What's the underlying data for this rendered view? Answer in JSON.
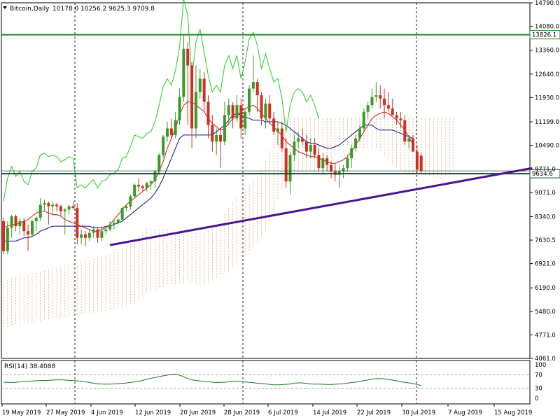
{
  "header": {
    "symbol": "Bitcoin,Daily",
    "ohlc": "10178.0 10256.2 9625.3 9709.8"
  },
  "rsi_header": "RSI(14) 38.4088",
  "colors": {
    "bull": "#3a9a28",
    "bear": "#d03020",
    "tenkan": "#d01515",
    "kijun": "#0a0a9a",
    "chikou": "#22cc22",
    "cloud": "#d8a070",
    "resistance": "#1a8a1a",
    "support": "#1a4a3a",
    "trendline": "#4a1490",
    "rsi": "#1a7a1a",
    "grid": "#222222"
  },
  "chart_data": [
    {
      "type": "candlestick",
      "title": "Bitcoin,Daily",
      "x_labels": [
        "19 May 2019",
        "27 May 2019",
        "4 Jun 2019",
        "12 Jun 2019",
        "20 Jun 2019",
        "28 Jun 2019",
        "6 Jul 2019",
        "14 Jul 2019",
        "22 Jul 2019",
        "30 Jul 2019",
        "7 Aug 2019",
        "15 Aug 2019"
      ],
      "y_ticks": [
        "14790.0",
        "14080.0",
        "13360.0",
        "12640.0",
        "11930.0",
        "11199.0",
        "10490.0",
        "9771.0",
        "9071.0",
        "8340.0",
        "7630.5",
        "6921.0",
        "6190.0",
        "5480.0",
        "4771.0",
        "4061.0"
      ],
      "ylim": [
        4061,
        14790
      ],
      "horizontal_lines": [
        {
          "label": "13826.1",
          "value": 13826.1
        },
        {
          "label": "9634.6",
          "value": 9634.6
        }
      ],
      "trendline": {
        "start": {
          "x": 26,
          "y": 7480
        },
        "end": {
          "x": 116,
          "y": 9800
        }
      },
      "candles": [
        [
          8200,
          8300,
          7200,
          7300
        ],
        [
          7300,
          8200,
          7200,
          8000
        ],
        [
          8000,
          8400,
          7700,
          8350
        ],
        [
          8350,
          8400,
          7900,
          8050
        ],
        [
          8050,
          8300,
          7800,
          8200
        ],
        [
          8200,
          8300,
          7750,
          7900
        ],
        [
          7900,
          8100,
          7300,
          7800
        ],
        [
          7800,
          8250,
          7700,
          8200
        ],
        [
          8200,
          8350,
          7900,
          8300
        ],
        [
          8300,
          8900,
          8200,
          8700
        ],
        [
          8700,
          8850,
          8500,
          8750
        ],
        [
          8750,
          8800,
          8100,
          8650
        ],
        [
          8650,
          8800,
          8400,
          8700
        ],
        [
          8700,
          8750,
          8500,
          8650
        ],
        [
          8650,
          8700,
          8350,
          8500
        ],
        [
          8500,
          8600,
          7800,
          8550
        ],
        [
          8550,
          8700,
          8400,
          8650
        ],
        [
          8650,
          8800,
          8550,
          8600
        ],
        [
          8600,
          8750,
          7500,
          7700
        ],
        [
          7700,
          7950,
          7500,
          7800
        ],
        [
          7800,
          7900,
          7450,
          7700
        ],
        [
          7700,
          7950,
          7600,
          7850
        ],
        [
          7850,
          8050,
          7700,
          7950
        ],
        [
          7950,
          8000,
          7550,
          7700
        ],
        [
          7700,
          8050,
          7600,
          7900
        ],
        [
          7900,
          8050,
          7800,
          7950
        ],
        [
          7950,
          8200,
          7900,
          8100
        ],
        [
          8100,
          8250,
          7950,
          8150
        ],
        [
          8150,
          8300,
          8100,
          8250
        ],
        [
          8250,
          8650,
          8200,
          8600
        ],
        [
          8600,
          8700,
          8500,
          8650
        ],
        [
          8650,
          9000,
          8550,
          8950
        ],
        [
          8950,
          9350,
          8900,
          9300
        ],
        [
          9300,
          9500,
          9100,
          9250
        ],
        [
          9250,
          9300,
          9100,
          9200
        ],
        [
          9200,
          9400,
          9100,
          9350
        ],
        [
          9350,
          9450,
          9150,
          9400
        ],
        [
          9400,
          9750,
          9200,
          9700
        ],
        [
          9700,
          10250,
          9600,
          10200
        ],
        [
          10200,
          10800,
          10100,
          10750
        ],
        [
          10750,
          11200,
          10600,
          11000
        ],
        [
          11000,
          11300,
          10700,
          10800
        ],
        [
          10800,
          11500,
          10700,
          11250
        ],
        [
          11250,
          12200,
          11100,
          11950
        ],
        [
          11950,
          13800,
          11800,
          13400
        ],
        [
          13400,
          13600,
          11100,
          12900
        ],
        [
          12900,
          13000,
          10400,
          11000
        ],
        [
          11000,
          12900,
          10700,
          12100
        ],
        [
          12100,
          12800,
          11900,
          12500
        ],
        [
          12500,
          12700,
          11500,
          11800
        ],
        [
          11800,
          12000,
          10700,
          11100
        ],
        [
          11100,
          11400,
          10300,
          10600
        ],
        [
          10600,
          11000,
          10200,
          10800
        ],
        [
          10800,
          11000,
          9800,
          10600
        ],
        [
          10600,
          11800,
          10500,
          11400
        ],
        [
          11400,
          11900,
          11100,
          11700
        ],
        [
          11700,
          11800,
          11000,
          11300
        ],
        [
          11300,
          12000,
          11200,
          11700
        ],
        [
          11700,
          11900,
          10700,
          11000
        ],
        [
          11000,
          11600,
          10800,
          11500
        ],
        [
          11500,
          12300,
          11400,
          12200
        ],
        [
          12200,
          13200,
          12100,
          12400
        ],
        [
          12400,
          12500,
          11500,
          12000
        ],
        [
          12000,
          12100,
          11100,
          11300
        ],
        [
          11300,
          11900,
          11000,
          11750
        ],
        [
          11750,
          12000,
          11200,
          11300
        ],
        [
          11300,
          11500,
          10800,
          10900
        ],
        [
          10900,
          11200,
          10500,
          11000
        ],
        [
          11000,
          11200,
          10300,
          10400
        ],
        [
          10400,
          10700,
          9200,
          9400
        ],
        [
          9400,
          10300,
          9000,
          10200
        ],
        [
          10200,
          10800,
          10000,
          10600
        ],
        [
          10600,
          10900,
          10400,
          10700
        ],
        [
          10700,
          11000,
          10500,
          10600
        ],
        [
          10600,
          10800,
          10100,
          10300
        ],
        [
          10300,
          10700,
          10100,
          10500
        ],
        [
          10500,
          10700,
          10100,
          10200
        ],
        [
          10200,
          10400,
          9700,
          9800
        ],
        [
          9800,
          10250,
          9600,
          10100
        ],
        [
          10100,
          10200,
          9700,
          9900
        ],
        [
          9900,
          10000,
          9500,
          9700
        ],
        [
          9700,
          9950,
          9400,
          9600
        ],
        [
          9600,
          9850,
          9200,
          9700
        ],
        [
          9700,
          9900,
          9500,
          9800
        ],
        [
          9800,
          10200,
          9700,
          10100
        ],
        [
          10100,
          10500,
          9800,
          10400
        ],
        [
          10400,
          10800,
          10300,
          10700
        ],
        [
          10700,
          11100,
          10600,
          11000
        ],
        [
          11000,
          11600,
          10900,
          11500
        ],
        [
          11500,
          11800,
          11300,
          11700
        ],
        [
          11700,
          12200,
          11600,
          11950
        ],
        [
          11950,
          12400,
          11800,
          12000
        ],
        [
          12000,
          12300,
          11600,
          11900
        ],
        [
          11900,
          12200,
          11300,
          11700
        ],
        [
          11700,
          12100,
          11500,
          11600
        ],
        [
          11600,
          11900,
          11400,
          11400
        ],
        [
          11400,
          11500,
          11100,
          11300
        ],
        [
          11300,
          11500,
          11000,
          11250
        ],
        [
          11250,
          11400,
          10500,
          10600
        ],
        [
          10600,
          10800,
          10400,
          10700
        ],
        [
          10700,
          10800,
          10300,
          10300
        ],
        [
          10300,
          10500,
          9700,
          9750
        ],
        [
          10178.0,
          10256.2,
          9625.3,
          9709.8
        ]
      ],
      "tenkan": [
        8000,
        8050,
        8100,
        8100,
        8150,
        8200,
        8250,
        8350,
        8450,
        8500,
        8500,
        8450,
        8400,
        8400,
        8350,
        8250,
        8200,
        8150,
        8100,
        8050,
        8000,
        7950,
        7900,
        7900,
        7950,
        8000,
        8100,
        8250,
        8400,
        8550,
        8700,
        8800,
        8900,
        9000,
        9100,
        9200,
        9300,
        9450,
        9700,
        10000,
        10400,
        10700,
        11000,
        11400,
        11700,
        11800,
        11800,
        11700,
        11600,
        11500,
        11300,
        11150,
        11050,
        10950,
        11000,
        11150,
        11300,
        11400,
        11500,
        11600,
        11650,
        11700,
        11600,
        11450,
        11300,
        11150,
        11050,
        10900,
        10800,
        10600,
        10500,
        10400,
        10300,
        10250,
        10200,
        10150,
        10150,
        10100,
        10050,
        10000,
        9950,
        9950,
        10000,
        10050,
        10150,
        10300,
        10500,
        10700,
        10900,
        11100,
        11300,
        11400,
        11450,
        11500,
        11450,
        11350,
        11250,
        11100,
        10950,
        10750,
        10500
      ],
      "kijun": [
        7600,
        7600,
        7600,
        7600,
        7650,
        7700,
        7700,
        7750,
        7800,
        7900,
        7950,
        8000,
        8050,
        8050,
        8050,
        8050,
        8050,
        8050,
        8050,
        8050,
        8050,
        8050,
        8000,
        8000,
        8000,
        8050,
        8050,
        8100,
        8150,
        8200,
        8300,
        8400,
        8500,
        8600,
        8700,
        8800,
        8900,
        9050,
        9250,
        9500,
        9800,
        10100,
        10400,
        10700,
        10800,
        10800,
        10800,
        10800,
        10800,
        10800,
        10800,
        10800,
        10900,
        11000,
        11100,
        11250,
        11400,
        11450,
        11400,
        11350,
        11300,
        11250,
        11250,
        11250,
        11200,
        11200,
        11200,
        11200,
        11150,
        11100,
        11000,
        10900,
        10800,
        10700,
        10600,
        10550,
        10550,
        10500,
        10450,
        10400,
        10400,
        10450,
        10500,
        10600,
        10700,
        10800,
        10900,
        11000,
        11100,
        11100,
        11100,
        11000,
        10950,
        10950,
        10950,
        10950,
        10900,
        10850,
        10800,
        10750,
        10700
      ],
      "rsi": [
        48,
        47,
        47,
        49,
        50,
        51,
        52,
        53,
        53,
        54,
        55,
        55,
        54,
        53,
        52,
        50,
        48,
        45,
        43,
        42,
        42,
        43,
        44,
        45,
        47,
        49,
        52,
        56,
        60,
        63,
        66,
        69,
        72,
        70,
        65,
        58,
        54,
        52,
        50,
        49,
        47,
        47,
        48,
        50,
        51,
        50,
        48,
        47,
        45,
        44,
        42,
        40,
        40,
        41,
        42,
        45,
        46,
        45,
        43,
        42,
        42,
        41,
        41,
        42,
        43,
        45,
        47,
        49,
        52,
        55,
        58,
        59,
        58,
        56,
        53,
        50,
        47,
        45,
        42,
        38
      ],
      "rsi_levels": [
        {
          "label": "70",
          "value": 70
        },
        {
          "label": "30",
          "value": 30
        }
      ],
      "rsi_ticks": [
        "100",
        "70",
        "30",
        "0"
      ]
    }
  ]
}
